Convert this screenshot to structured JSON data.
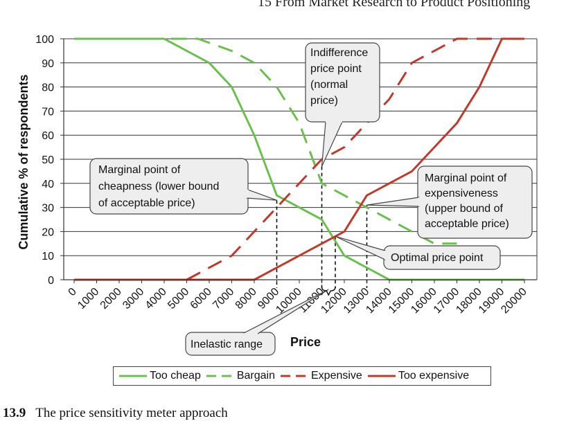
{
  "page_header": "15   From Market Research to Product Positioning",
  "caption": {
    "number": "13.9",
    "text": "The price sensitivity meter approach"
  },
  "chart_data": {
    "type": "line",
    "xlabel": "Price",
    "ylabel": "Cumulative % of respondents",
    "x_ticks": [
      0,
      1000,
      2000,
      3000,
      4000,
      5000,
      6000,
      7000,
      8000,
      9000,
      10000,
      11000,
      12000,
      13000,
      14000,
      15000,
      16000,
      17000,
      18000,
      19000,
      20000
    ],
    "y_ticks": [
      0,
      10,
      20,
      30,
      40,
      50,
      60,
      70,
      80,
      90,
      100
    ],
    "xlim": [
      0,
      20000
    ],
    "ylim": [
      0,
      100
    ],
    "grid": "horizontal",
    "legend_position": "bottom",
    "series": [
      {
        "name": "Too cheap",
        "color": "#6bbf4e",
        "dash": "solid",
        "points": [
          [
            0,
            100
          ],
          [
            4000,
            100
          ],
          [
            6000,
            90
          ],
          [
            7000,
            80
          ],
          [
            8000,
            60
          ],
          [
            9000,
            35
          ],
          [
            10000,
            30
          ],
          [
            11000,
            25
          ],
          [
            12000,
            10
          ],
          [
            13000,
            5
          ],
          [
            14000,
            0
          ],
          [
            20000,
            0
          ]
        ]
      },
      {
        "name": "Bargain",
        "color": "#6bbf4e",
        "dash": "dashed",
        "points": [
          [
            0,
            100
          ],
          [
            5500,
            100
          ],
          [
            7000,
            95
          ],
          [
            8000,
            90
          ],
          [
            9000,
            80
          ],
          [
            10000,
            65
          ],
          [
            11000,
            40
          ],
          [
            12000,
            35
          ],
          [
            13000,
            30
          ],
          [
            14000,
            25
          ],
          [
            15000,
            20
          ],
          [
            16000,
            15
          ],
          [
            17000,
            15
          ]
        ]
      },
      {
        "name": "Expensive",
        "color": "#c0392b",
        "dash": "dashed",
        "points": [
          [
            5000,
            0
          ],
          [
            6000,
            5
          ],
          [
            7000,
            10
          ],
          [
            8000,
            20
          ],
          [
            9000,
            30
          ],
          [
            10000,
            40
          ],
          [
            11000,
            50
          ],
          [
            12000,
            55
          ],
          [
            13000,
            65
          ],
          [
            14000,
            75
          ],
          [
            15000,
            90
          ],
          [
            16000,
            95
          ],
          [
            17000,
            100
          ],
          [
            20000,
            100
          ]
        ]
      },
      {
        "name": "Too expensive",
        "color": "#c0392b",
        "dash": "solid",
        "points": [
          [
            0,
            0
          ],
          [
            8000,
            0
          ],
          [
            9000,
            5
          ],
          [
            10000,
            10
          ],
          [
            11000,
            15
          ],
          [
            12000,
            20
          ],
          [
            13000,
            35
          ],
          [
            14000,
            40
          ],
          [
            15000,
            45
          ],
          [
            16000,
            55
          ],
          [
            17000,
            65
          ],
          [
            18000,
            80
          ],
          [
            19000,
            100
          ],
          [
            20000,
            100
          ]
        ]
      }
    ],
    "annotations": [
      {
        "id": "indifference",
        "lines": [
          "Indifference",
          "price point",
          "(normal",
          "price)"
        ],
        "point": [
          11000,
          47
        ]
      },
      {
        "id": "cheapness",
        "lines": [
          "Marginal point of",
          "cheapness (lower bound",
          "of acceptable price)"
        ],
        "point": [
          9000,
          33
        ]
      },
      {
        "id": "expensiveness",
        "lines": [
          "Marginal point of",
          "expensiveness",
          "(upper bound of",
          "acceptable price)"
        ],
        "point": [
          13000,
          31
        ]
      },
      {
        "id": "optimal",
        "lines": [
          "Optimal price point"
        ],
        "point": [
          11400,
          18
        ]
      },
      {
        "id": "inelastic",
        "lines": [
          "Inelastic range"
        ],
        "range": [
          11000,
          11600
        ]
      }
    ],
    "reference_lines_x": [
      9000,
      11000,
      11600,
      13000
    ]
  }
}
